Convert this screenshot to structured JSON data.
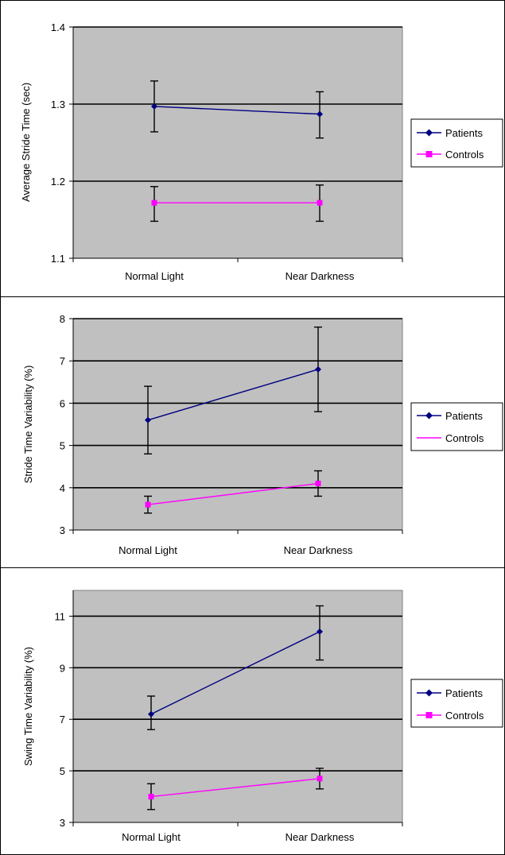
{
  "legend_position": "right",
  "colors": {
    "patients": "#000080",
    "controls": "#ff00ff",
    "plot_bg": "#c0c0c0"
  },
  "chart_data": [
    {
      "type": "line",
      "title": "",
      "xlabel": "",
      "ylabel": "Average Stride Time (sec)",
      "categories": [
        "Normal Light",
        "Near Darkness"
      ],
      "ylim": [
        1.1,
        1.4
      ],
      "yticks": [
        "1.1",
        "1.2",
        "1.3",
        "1.4"
      ],
      "grid": true,
      "series": [
        {
          "name": "Patients",
          "values": [
            1.297,
            1.287
          ],
          "error_low": [
            1.264,
            1.256
          ],
          "error_high": [
            1.33,
            1.316
          ]
        },
        {
          "name": "Controls",
          "values": [
            1.172,
            1.172
          ],
          "error_low": [
            1.148,
            1.148
          ],
          "error_high": [
            1.193,
            1.195
          ]
        }
      ]
    },
    {
      "type": "line",
      "title": "",
      "xlabel": "",
      "ylabel": "Stride Time Variability (%)",
      "categories": [
        "Normal Light",
        "Near Darkness"
      ],
      "ylim": [
        3,
        8
      ],
      "yticks": [
        "3",
        "4",
        "5",
        "6",
        "7",
        "8"
      ],
      "grid": true,
      "series": [
        {
          "name": "Patients",
          "values": [
            5.6,
            6.8
          ],
          "error_low": [
            4.8,
            5.8
          ],
          "error_high": [
            6.4,
            7.8
          ]
        },
        {
          "name": "Controls",
          "values": [
            3.6,
            4.1
          ],
          "error_low": [
            3.4,
            3.8
          ],
          "error_high": [
            3.8,
            4.4
          ]
        }
      ]
    },
    {
      "type": "line",
      "title": "",
      "xlabel": "",
      "ylabel": "Swing Time Variability (%)",
      "categories": [
        "Normal Light",
        "Near Darkness"
      ],
      "ylim": [
        3,
        12
      ],
      "yticks": [
        "3",
        "5",
        "7",
        "9",
        "11"
      ],
      "grid": true,
      "series": [
        {
          "name": "Patients",
          "values": [
            7.2,
            10.4
          ],
          "error_low": [
            6.6,
            9.3
          ],
          "error_high": [
            7.9,
            11.4
          ]
        },
        {
          "name": "Controls",
          "values": [
            4.0,
            4.7
          ],
          "error_low": [
            3.5,
            4.3
          ],
          "error_high": [
            4.5,
            5.1
          ]
        }
      ]
    }
  ]
}
